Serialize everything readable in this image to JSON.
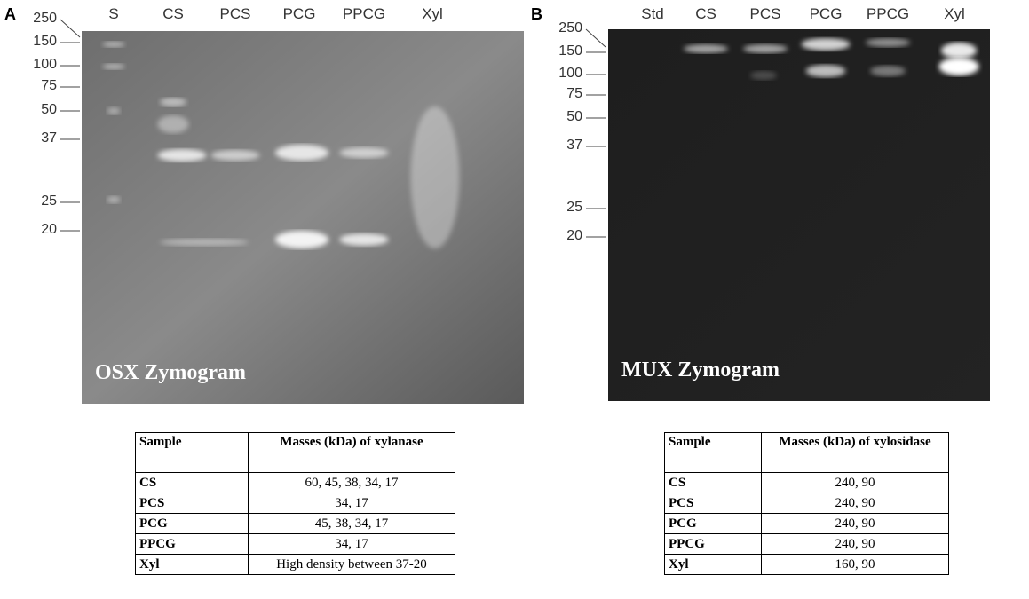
{
  "panels": [
    {
      "label": "A",
      "lanes": [
        "S",
        "CS",
        "PCS",
        "PCG",
        "PPCG",
        "Xyl"
      ],
      "markers": [
        "250",
        "150",
        "100",
        "75",
        "50",
        "37",
        "25",
        "20"
      ],
      "gel_title": "OSX Zymogram",
      "table": {
        "header": [
          "Sample",
          "Masses (kDa) of xylanase"
        ],
        "rows": [
          [
            "CS",
            "60, 45, 38, 34, 17"
          ],
          [
            "PCS",
            "34, 17"
          ],
          [
            "PCG",
            "45, 38, 34, 17"
          ],
          [
            "PPCG",
            "34, 17"
          ],
          [
            "Xyl",
            "High density between 37-20"
          ]
        ]
      }
    },
    {
      "label": "B",
      "lanes": [
        "Std",
        "CS",
        "PCS",
        "PCG",
        "PPCG",
        "Xyl"
      ],
      "markers": [
        "250",
        "150",
        "100",
        "75",
        "50",
        "37",
        "25",
        "20"
      ],
      "gel_title": "MUX Zymogram",
      "table": {
        "header": [
          "Sample",
          "Masses (kDa) of xylosidase"
        ],
        "rows": [
          [
            "CS",
            "240, 90"
          ],
          [
            "PCS",
            "240, 90"
          ],
          [
            "PCG",
            "240, 90"
          ],
          [
            "PPCG",
            "240, 90"
          ],
          [
            "Xyl",
            "160, 90"
          ]
        ]
      }
    }
  ]
}
